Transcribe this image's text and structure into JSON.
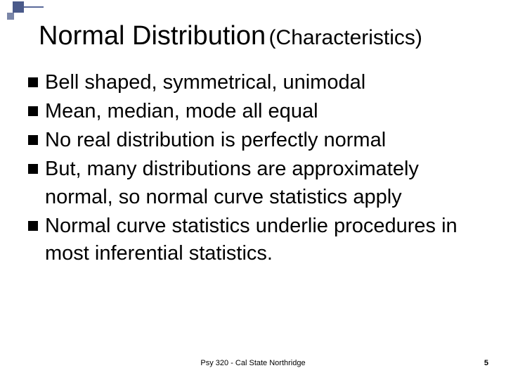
{
  "decoration": {
    "big_square_color": "#4a5a8a",
    "small_square_color": "#7a86a8",
    "line_color": "#5a6a9a"
  },
  "title": {
    "main": "Normal Distribution",
    "sub": "(Characteristics)",
    "main_fontsize": 38,
    "sub_fontsize": 30,
    "color": "#000000"
  },
  "bullets": {
    "marker_color": "#000000",
    "marker_size": 14,
    "text_fontsize": 29,
    "text_color": "#000000",
    "items": [
      "Bell shaped, symmetrical, unimodal",
      "Mean, median, mode all equal",
      "No real distribution is perfectly normal",
      "But, many distributions are approximately normal, so normal curve statistics apply",
      "Normal curve statistics underlie procedures in most inferential statistics."
    ]
  },
  "footer": {
    "center": "Psy 320 - Cal State Northridge",
    "page_number": "5",
    "fontsize": 11
  },
  "background_color": "#ffffff"
}
